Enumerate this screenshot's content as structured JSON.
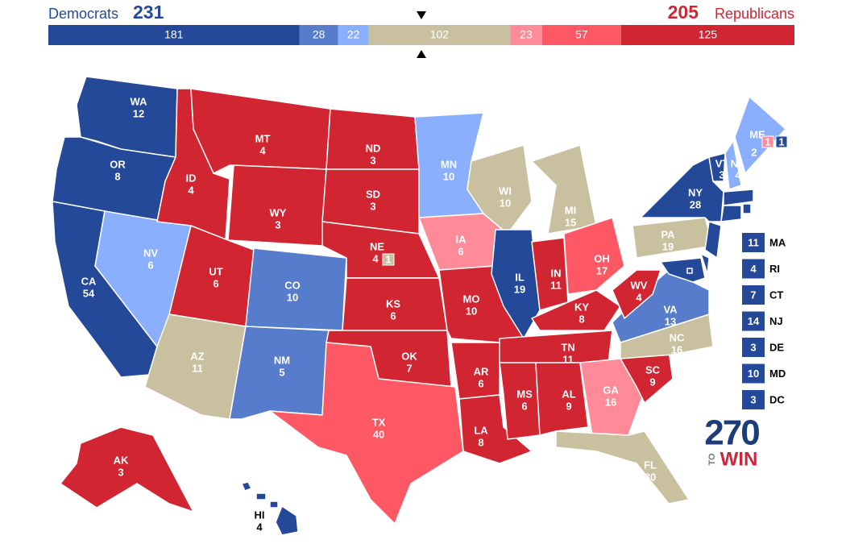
{
  "header": {
    "dem_label": "Democrats",
    "dem_total": 231,
    "rep_total": 205,
    "rep_label": "Republicans"
  },
  "bar": [
    {
      "value": 181,
      "color": "#244999"
    },
    {
      "value": 28,
      "color": "#577ccc"
    },
    {
      "value": 22,
      "color": "#8aafff"
    },
    {
      "value": 102,
      "color": "#c9c09f"
    },
    {
      "value": 23,
      "color": "#ff8b98"
    },
    {
      "value": 57,
      "color": "#ff5865"
    },
    {
      "value": 125,
      "color": "#d22532"
    }
  ],
  "states": [
    {
      "abbr": "WA",
      "votes": 12,
      "color": "#244999"
    },
    {
      "abbr": "OR",
      "votes": 8,
      "color": "#244999"
    },
    {
      "abbr": "CA",
      "votes": 54,
      "color": "#244999"
    },
    {
      "abbr": "NV",
      "votes": 6,
      "color": "#8aafff"
    },
    {
      "abbr": "ID",
      "votes": 4,
      "color": "#d22532"
    },
    {
      "abbr": "MT",
      "votes": 4,
      "color": "#d22532"
    },
    {
      "abbr": "WY",
      "votes": 3,
      "color": "#d22532"
    },
    {
      "abbr": "UT",
      "votes": 6,
      "color": "#d22532"
    },
    {
      "abbr": "AZ",
      "votes": 11,
      "color": "#c9c09f"
    },
    {
      "abbr": "CO",
      "votes": 10,
      "color": "#577ccc"
    },
    {
      "abbr": "NM",
      "votes": 5,
      "color": "#577ccc"
    },
    {
      "abbr": "ND",
      "votes": 3,
      "color": "#d22532"
    },
    {
      "abbr": "SD",
      "votes": 3,
      "color": "#d22532"
    },
    {
      "abbr": "NE",
      "votes": 4,
      "color": "#d22532"
    },
    {
      "abbr": "KS",
      "votes": 6,
      "color": "#d22532"
    },
    {
      "abbr": "OK",
      "votes": 7,
      "color": "#d22532"
    },
    {
      "abbr": "TX",
      "votes": 40,
      "color": "#ff5865"
    },
    {
      "abbr": "MN",
      "votes": 10,
      "color": "#8aafff"
    },
    {
      "abbr": "IA",
      "votes": 6,
      "color": "#ff8b98"
    },
    {
      "abbr": "MO",
      "votes": 10,
      "color": "#d22532"
    },
    {
      "abbr": "AR",
      "votes": 6,
      "color": "#d22532"
    },
    {
      "abbr": "LA",
      "votes": 8,
      "color": "#d22532"
    },
    {
      "abbr": "WI",
      "votes": 10,
      "color": "#c9c09f"
    },
    {
      "abbr": "IL",
      "votes": 19,
      "color": "#244999"
    },
    {
      "abbr": "MI",
      "votes": 15,
      "color": "#c9c09f"
    },
    {
      "abbr": "IN",
      "votes": 11,
      "color": "#d22532"
    },
    {
      "abbr": "OH",
      "votes": 17,
      "color": "#ff5865"
    },
    {
      "abbr": "KY",
      "votes": 8,
      "color": "#d22532"
    },
    {
      "abbr": "TN",
      "votes": 11,
      "color": "#d22532"
    },
    {
      "abbr": "MS",
      "votes": 6,
      "color": "#d22532"
    },
    {
      "abbr": "AL",
      "votes": 9,
      "color": "#d22532"
    },
    {
      "abbr": "GA",
      "votes": 16,
      "color": "#ff8b98"
    },
    {
      "abbr": "FL",
      "votes": 30,
      "color": "#c9c09f"
    },
    {
      "abbr": "SC",
      "votes": 9,
      "color": "#d22532"
    },
    {
      "abbr": "NC",
      "votes": 16,
      "color": "#c9c09f"
    },
    {
      "abbr": "VA",
      "votes": 13,
      "color": "#577ccc"
    },
    {
      "abbr": "WV",
      "votes": 4,
      "color": "#d22532"
    },
    {
      "abbr": "PA",
      "votes": 19,
      "color": "#c9c09f"
    },
    {
      "abbr": "NY",
      "votes": 28,
      "color": "#244999"
    },
    {
      "abbr": "VT",
      "votes": 3,
      "color": "#244999"
    },
    {
      "abbr": "NH",
      "votes": 4,
      "color": "#8aafff"
    },
    {
      "abbr": "ME",
      "votes": 2,
      "color": "#8aafff"
    },
    {
      "abbr": "AK",
      "votes": 3,
      "color": "#d22532"
    },
    {
      "abbr": "HI",
      "votes": 4,
      "color": "#244999"
    }
  ],
  "small_states": [
    {
      "abbr": "MA",
      "votes": 11,
      "color": "#244999"
    },
    {
      "abbr": "RI",
      "votes": 4,
      "color": "#244999"
    },
    {
      "abbr": "CT",
      "votes": 7,
      "color": "#244999"
    },
    {
      "abbr": "NJ",
      "votes": 14,
      "color": "#244999"
    },
    {
      "abbr": "DE",
      "votes": 3,
      "color": "#244999"
    },
    {
      "abbr": "MD",
      "votes": 10,
      "color": "#244999"
    },
    {
      "abbr": "DC",
      "votes": 3,
      "color": "#244999"
    }
  ],
  "districts": [
    {
      "votes": 1,
      "color": "#ff8b98"
    },
    {
      "votes": 1,
      "color": "#244999"
    },
    {
      "votes": 1,
      "color": "#c9c09f"
    }
  ],
  "logo": {
    "number": "270",
    "prefix": "TO",
    "word": "WIN"
  }
}
